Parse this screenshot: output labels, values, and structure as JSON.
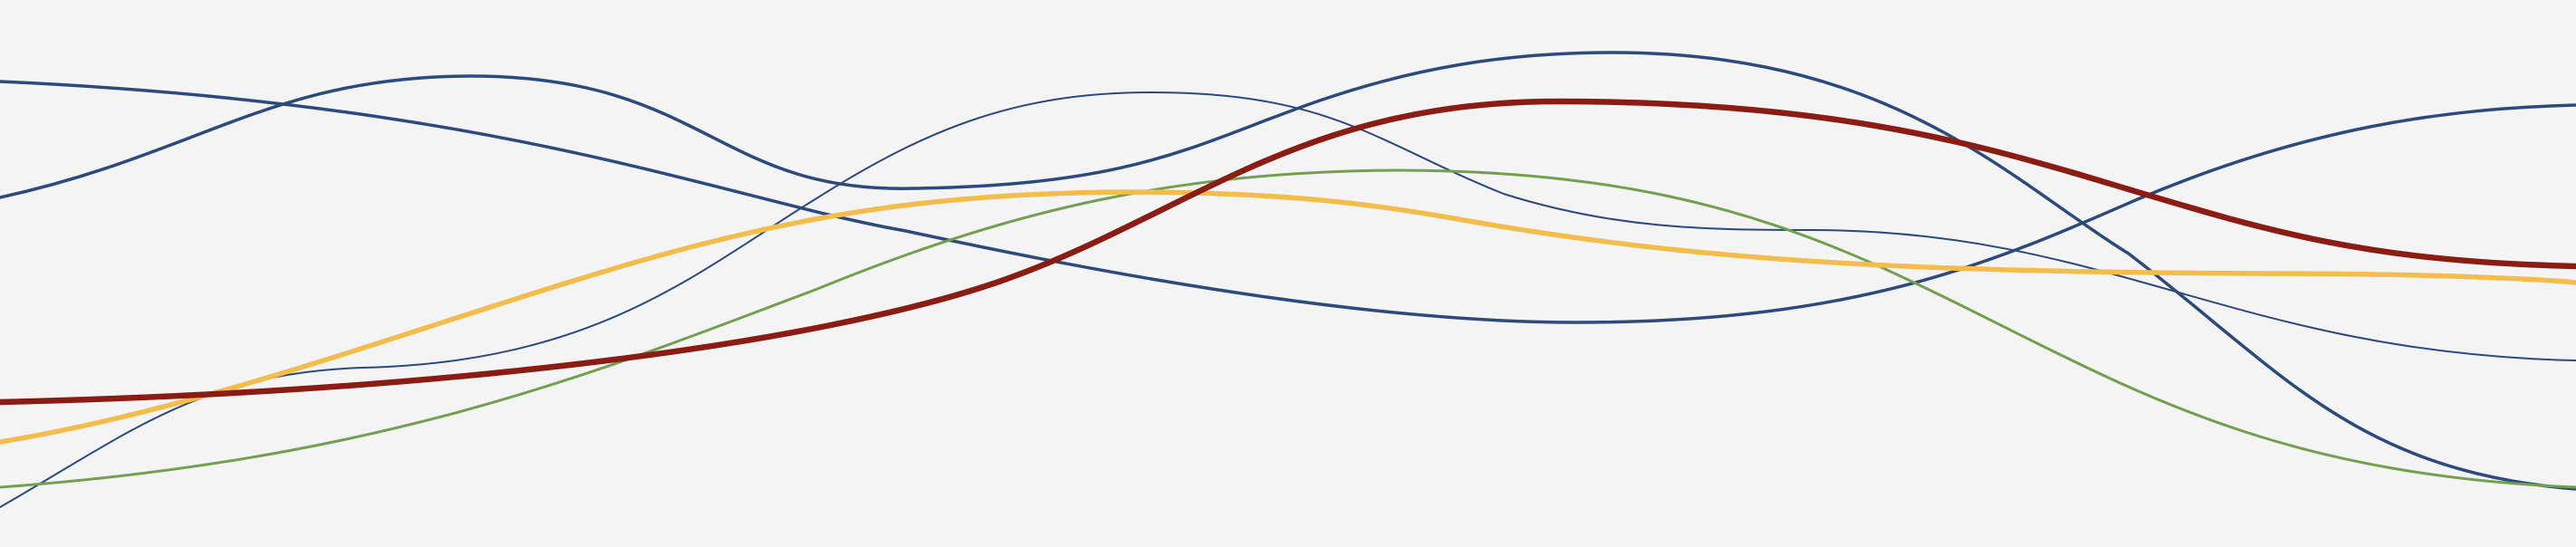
{
  "background": "#f4f4f4",
  "waves": [
    {
      "id": "blue-thick-long",
      "color": "#2c4a7c",
      "weight": "regular"
    },
    {
      "id": "blue-upper-loop",
      "color": "#2c4a7c",
      "weight": "regular"
    },
    {
      "id": "blue-thin",
      "color": "#2c4a7c",
      "weight": "thin"
    },
    {
      "id": "green",
      "color": "#73a04f",
      "weight": "regular"
    },
    {
      "id": "gold",
      "color": "#f2bd4b",
      "weight": "bold"
    },
    {
      "id": "red",
      "color": "#8b1c14",
      "weight": "bold"
    }
  ]
}
